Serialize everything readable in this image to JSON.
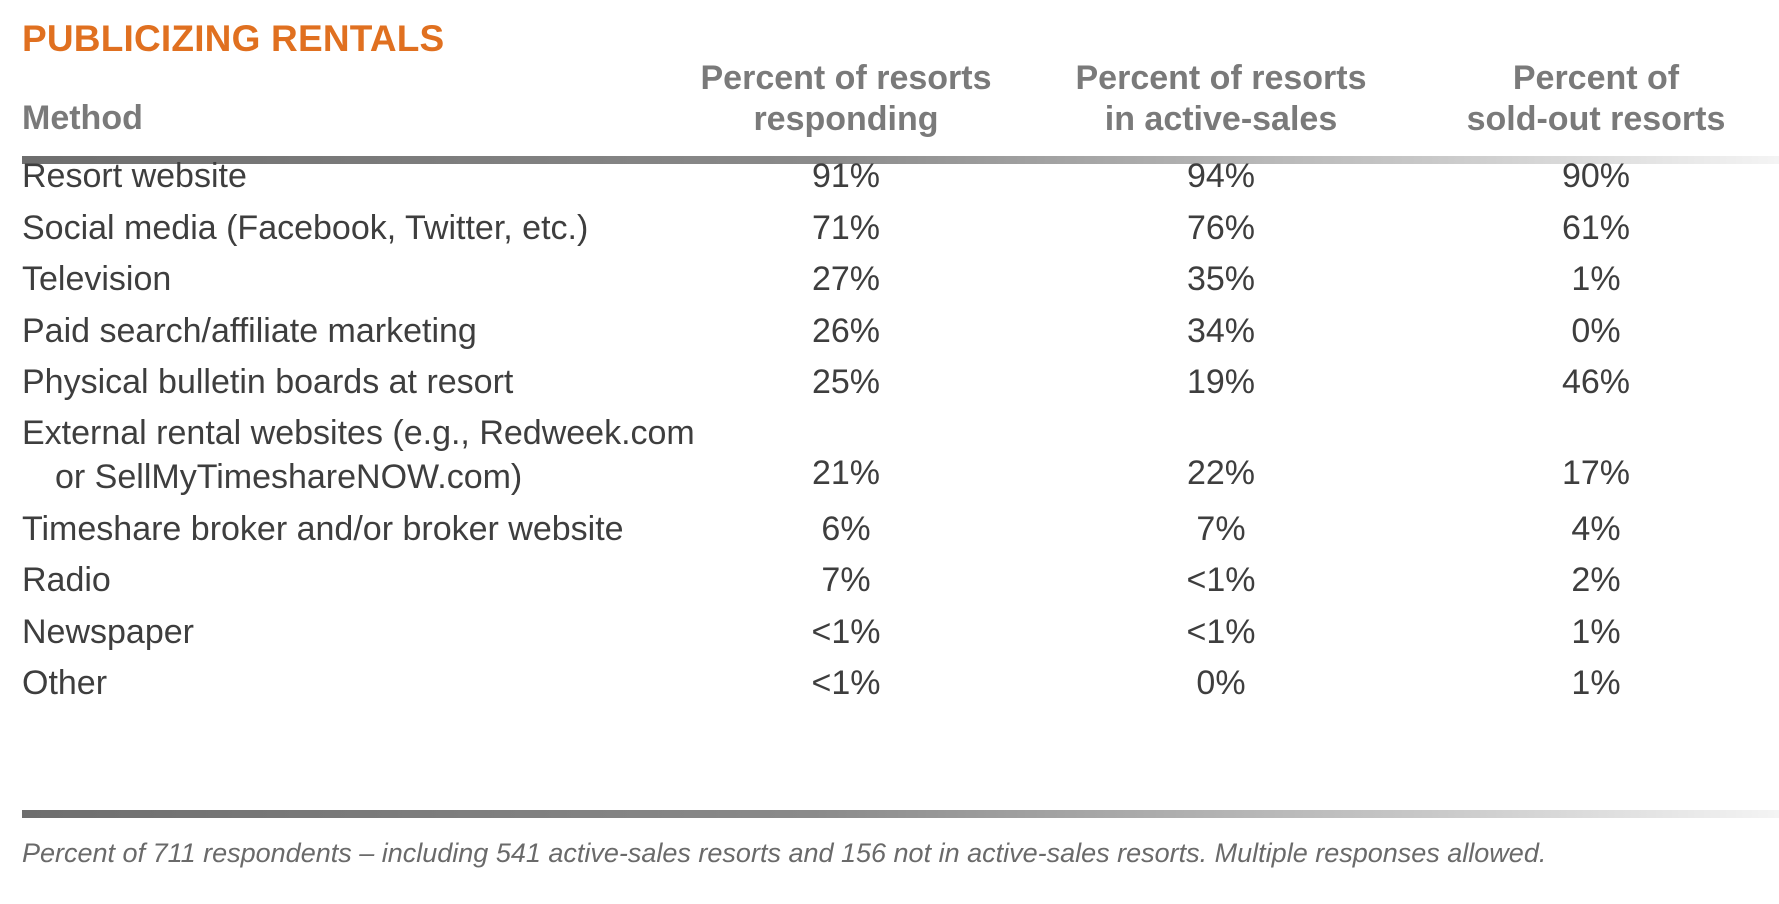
{
  "chart_data": {
    "type": "table",
    "title": "PUBLICIZING RENTALS",
    "columns": [
      {
        "label_lines": [
          "Method"
        ]
      },
      {
        "label_lines": [
          "Percent of resorts",
          "responding"
        ]
      },
      {
        "label_lines": [
          "Percent of resorts",
          "in active-sales"
        ]
      },
      {
        "label_lines": [
          "Percent of",
          "sold-out resorts"
        ]
      }
    ],
    "rows": [
      {
        "method": [
          "Resort website"
        ],
        "values": [
          "91%",
          "94%",
          "90%"
        ]
      },
      {
        "method": [
          "Social media (Facebook, Twitter, etc.)"
        ],
        "values": [
          "71%",
          "76%",
          "61%"
        ]
      },
      {
        "method": [
          "Television"
        ],
        "values": [
          "27%",
          "35%",
          "1%"
        ]
      },
      {
        "method": [
          "Paid search/affiliate marketing"
        ],
        "values": [
          "26%",
          "34%",
          "0%"
        ]
      },
      {
        "method": [
          "Physical bulletin boards at resort"
        ],
        "values": [
          "25%",
          "19%",
          "46%"
        ]
      },
      {
        "method": [
          "External rental websites (e.g., Redweek.com",
          "or SellMyTimeshareNOW.com)"
        ],
        "values": [
          "21%",
          "22%",
          "17%"
        ]
      },
      {
        "method": [
          "Timeshare broker and/or broker website"
        ],
        "values": [
          "6%",
          "7%",
          "4%"
        ]
      },
      {
        "method": [
          "Radio"
        ],
        "values": [
          "7%",
          "<1%",
          "2%"
        ]
      },
      {
        "method": [
          "Newspaper"
        ],
        "values": [
          "<1%",
          "<1%",
          "1%"
        ]
      },
      {
        "method": [
          "Other"
        ],
        "values": [
          "<1%",
          "0%",
          "1%"
        ]
      }
    ],
    "footnote": "Percent of 711 respondents – including 541 active-sales resorts and 156 not in active-sales resorts. Multiple responses allowed."
  },
  "colors": {
    "title": "#e07020",
    "header_text": "#7a7a7a",
    "body_text": "#3e3e3e",
    "rule": "#6e6e6e",
    "footnote": "#6a6a6a"
  }
}
